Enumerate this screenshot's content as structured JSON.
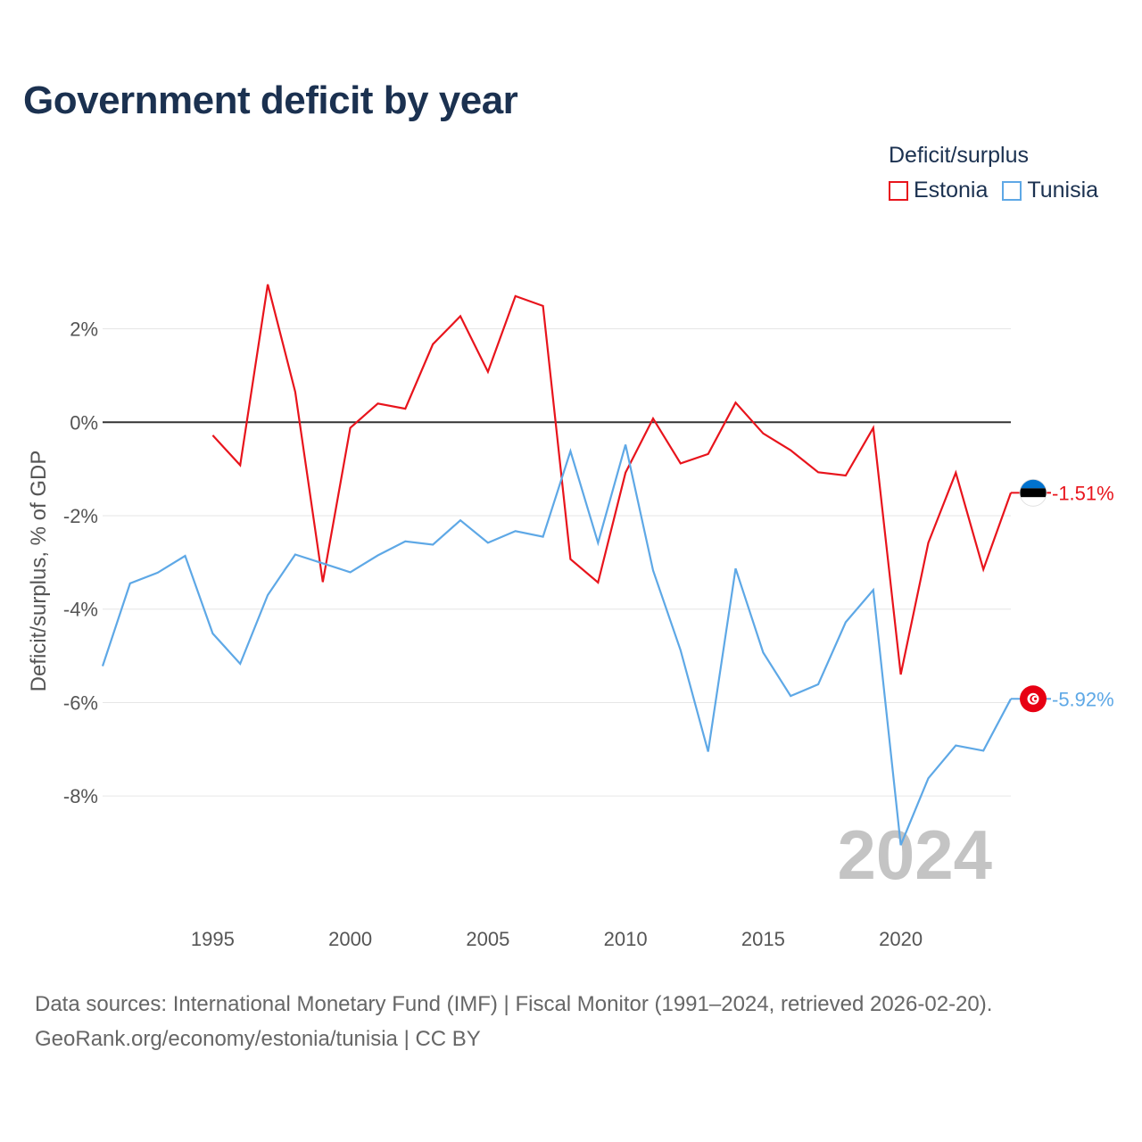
{
  "chart_data": {
    "type": "line",
    "title": "Government deficit by year",
    "ylabel": "Deficit/surplus, % of GDP",
    "xlabel": "",
    "legend_title": "Deficit/surplus",
    "legend_position": "top-right",
    "current_year_label": "2024",
    "ylim": [
      -10.25,
      3.5
    ],
    "xlim": [
      1991,
      2024
    ],
    "y_ticks": [
      2,
      0,
      -2,
      -4,
      -6,
      -8
    ],
    "y_tick_labels": [
      "2%",
      "0%",
      "-2%",
      "-4%",
      "-6%",
      "-8%"
    ],
    "x_ticks": [
      1995,
      2000,
      2005,
      2010,
      2015,
      2020
    ],
    "x_tick_labels": [
      "1995",
      "2000",
      "2005",
      "2010",
      "2015",
      "2020"
    ],
    "grid": true,
    "series": [
      {
        "name": "Estonia",
        "color": "#e8141c",
        "end_label": "-1.51%",
        "x": [
          1995,
          1996,
          1997,
          1998,
          1999,
          2000,
          2001,
          2002,
          2003,
          2004,
          2005,
          2006,
          2007,
          2008,
          2009,
          2010,
          2011,
          2012,
          2013,
          2014,
          2015,
          2016,
          2017,
          2018,
          2019,
          2020,
          2021,
          2022,
          2023,
          2024
        ],
        "values": [
          -0.28,
          -0.92,
          2.95,
          0.65,
          -3.42,
          -0.12,
          0.4,
          0.29,
          1.67,
          2.27,
          1.08,
          2.7,
          2.49,
          -2.93,
          -3.43,
          -1.08,
          0.08,
          -0.88,
          -0.68,
          0.42,
          -0.24,
          -0.6,
          -1.07,
          -1.14,
          -0.12,
          -5.4,
          -2.58,
          -1.08,
          -3.15,
          -1.51
        ]
      },
      {
        "name": "Tunisia",
        "color": "#5ea8e6",
        "end_label": "-5.92%",
        "x": [
          1991,
          1992,
          1993,
          1994,
          1995,
          1996,
          1997,
          1998,
          1999,
          2000,
          2001,
          2002,
          2003,
          2004,
          2005,
          2006,
          2007,
          2008,
          2009,
          2010,
          2011,
          2012,
          2013,
          2014,
          2015,
          2016,
          2017,
          2018,
          2019,
          2020,
          2021,
          2022,
          2023,
          2024
        ],
        "values": [
          -5.22,
          -3.45,
          -3.22,
          -2.86,
          -4.52,
          -5.17,
          -3.7,
          -2.83,
          -3.02,
          -3.21,
          -2.85,
          -2.55,
          -2.62,
          -2.1,
          -2.58,
          -2.33,
          -2.45,
          -0.62,
          -2.58,
          -0.48,
          -3.17,
          -4.88,
          -7.05,
          -3.13,
          -4.93,
          -5.86,
          -5.61,
          -4.28,
          -3.59,
          -9.05,
          -7.62,
          -6.92,
          -7.03,
          -5.92
        ]
      }
    ],
    "sources": "Data sources: International Monetary Fund (IMF) | Fiscal Monitor (1991–2024, retrieved 2026-02-20).",
    "attribution": "GeoRank.org/economy/estonia/tunisia | CC BY"
  }
}
